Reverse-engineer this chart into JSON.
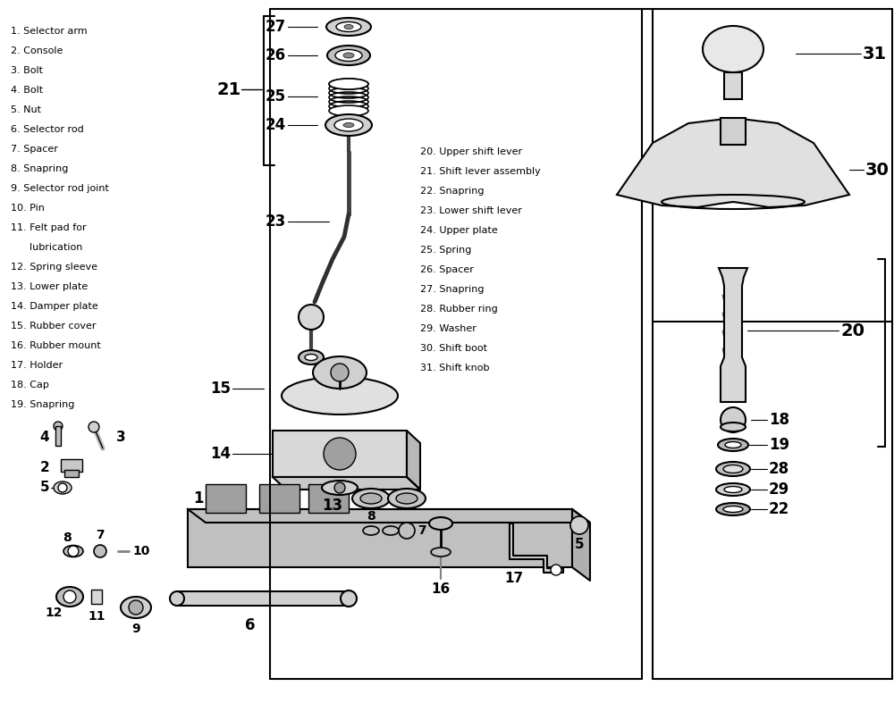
{
  "bg_color": "#ffffff",
  "line_color": "#000000",
  "text_color": "#000000",
  "left_labels": [
    "1. Selector arm",
    "2. Console",
    "3. Bolt",
    "4. Bolt",
    "5. Nut",
    "6. Selector rod",
    "7. Spacer",
    "8. Snapring",
    "9. Selector rod joint",
    "10. Pin",
    "11. Felt pad for",
    "      lubrication",
    "12. Spring sleeve",
    "13. Lower plate",
    "14. Damper plate",
    "15. Rubber cover",
    "16. Rubber mount",
    "17. Holder",
    "18. Cap",
    "19. Snapring"
  ],
  "right_labels": [
    "20. Upper shift lever",
    "21. Shift lever assembly",
    "22. Snapring",
    "23. Lower shift lever",
    "24. Upper plate",
    "25. Spring",
    "26. Spacer",
    "27. Snapring",
    "28. Rubber ring",
    "29. Washer",
    "30. Shift boot",
    "31. Shift knob"
  ]
}
